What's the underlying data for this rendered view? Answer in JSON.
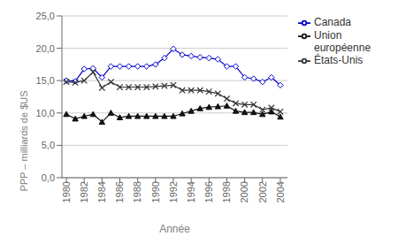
{
  "chart_data": {
    "type": "line",
    "xlabel": "Année",
    "ylabel": "PPP – milliards de $US",
    "x": [
      1980,
      1981,
      1982,
      1983,
      1984,
      1985,
      1986,
      1987,
      1988,
      1989,
      1990,
      1991,
      1992,
      1993,
      1994,
      1995,
      1996,
      1997,
      1998,
      1999,
      2000,
      2001,
      2002,
      2003,
      2004
    ],
    "series": [
      {
        "name": "Canada",
        "color": "#0000cc",
        "marker": "diamond",
        "values": [
          15.0,
          14.9,
          16.8,
          16.9,
          15.5,
          17.2,
          17.2,
          17.2,
          17.2,
          17.2,
          17.5,
          18.5,
          19.9,
          19.0,
          18.8,
          18.6,
          18.5,
          18.3,
          17.2,
          17.2,
          15.5,
          15.3,
          14.8,
          15.5,
          14.3
        ]
      },
      {
        "name": "États-Unis",
        "color": "#333333",
        "marker": "x",
        "values": [
          14.8,
          14.7,
          15.0,
          16.3,
          13.9,
          14.8,
          14.0,
          14.0,
          14.0,
          14.0,
          14.1,
          14.2,
          14.3,
          13.5,
          13.5,
          13.5,
          13.3,
          13.0,
          12.2,
          11.5,
          11.3,
          11.3,
          10.5,
          10.8,
          10.2
        ]
      },
      {
        "name": "Union\neuropéenne",
        "color": "#111111",
        "marker": "triangle",
        "values": [
          9.8,
          9.1,
          9.5,
          9.8,
          8.6,
          10.0,
          9.3,
          9.5,
          9.5,
          9.5,
          9.5,
          9.5,
          9.5,
          9.9,
          10.3,
          10.7,
          10.9,
          11.0,
          11.1,
          10.3,
          10.1,
          10.1,
          9.8,
          10.2,
          9.4
        ]
      }
    ],
    "xlim": [
      1979.5,
      2004.8
    ],
    "xticks": [
      1980,
      1982,
      1984,
      1986,
      1988,
      1990,
      1992,
      1994,
      1996,
      1998,
      2000,
      2002,
      2004
    ],
    "ylim": [
      0,
      25
    ],
    "yticks": [
      {
        "value": 0,
        "label": "0,0"
      },
      {
        "value": 5,
        "label": "5,0"
      },
      {
        "value": 10,
        "label": "10,0"
      },
      {
        "value": 15,
        "label": "15,0"
      },
      {
        "value": 20,
        "label": "20,0"
      },
      {
        "value": 25,
        "label": "25,0"
      }
    ],
    "grid": true,
    "legend": "right"
  }
}
